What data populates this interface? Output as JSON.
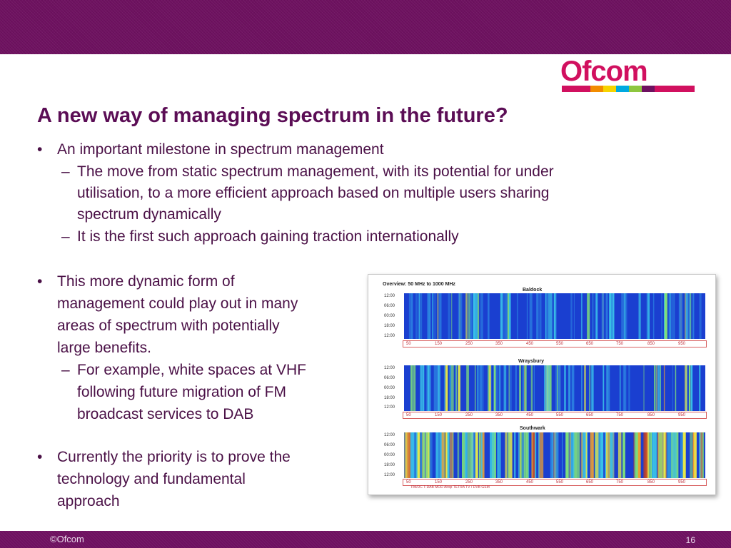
{
  "header": {
    "band_color": "#6e1160"
  },
  "logo": {
    "text": "Ofcom",
    "color": "#d1105f",
    "stripe_colors": [
      "#d1105f",
      "#f28c00",
      "#f6d400",
      "#00a9e0",
      "#8dc63f",
      "#6e1160",
      "#d1105f"
    ]
  },
  "slide": {
    "title": "A new way of managing spectrum in the future?",
    "bullet_glyph": "•",
    "dash_glyph": "–",
    "b1": {
      "text": "An important milestone in spectrum management",
      "sub1": [
        "The move from static spectrum management, with its potential for under",
        "utilisation, to a more efficient approach based on multiple users sharing",
        "spectrum dynamically"
      ],
      "sub2": "It is the first such approach gaining traction internationally"
    },
    "b2": {
      "lines": [
        "This more dynamic form of",
        "management could play out in many",
        "areas of spectrum with potentially",
        "large benefits."
      ],
      "sub": [
        "For example, white spaces at VHF",
        "following future migration of FM",
        "broadcast services to DAB"
      ]
    },
    "b3": {
      "lines": [
        "Currently the priority is to prove the",
        "technology and fundamental",
        "approach"
      ]
    }
  },
  "figure": {
    "title": "Overview:  50 MHz to 1000 MHz",
    "sites": [
      "Baldock",
      "Wraysbury",
      "Southwark"
    ],
    "time_labels": [
      "12:00",
      "06:00",
      "00:00",
      "18:00",
      "12:00"
    ],
    "x_ticks": [
      "50",
      "150",
      "250",
      "350",
      "450",
      "550",
      "650",
      "750",
      "850",
      "950"
    ],
    "x_ticks_wraysbury": [
      "50",
      "150",
      "250",
      "350",
      "450",
      "550",
      "650",
      "750",
      "850",
      "950"
    ],
    "band_legend": "FM/DC        T-DAB    MOD   Airsp    TETRA              TV / DVB                              GSM"
  },
  "footer": {
    "copyright": "©Ofcom",
    "page_number": "16"
  }
}
